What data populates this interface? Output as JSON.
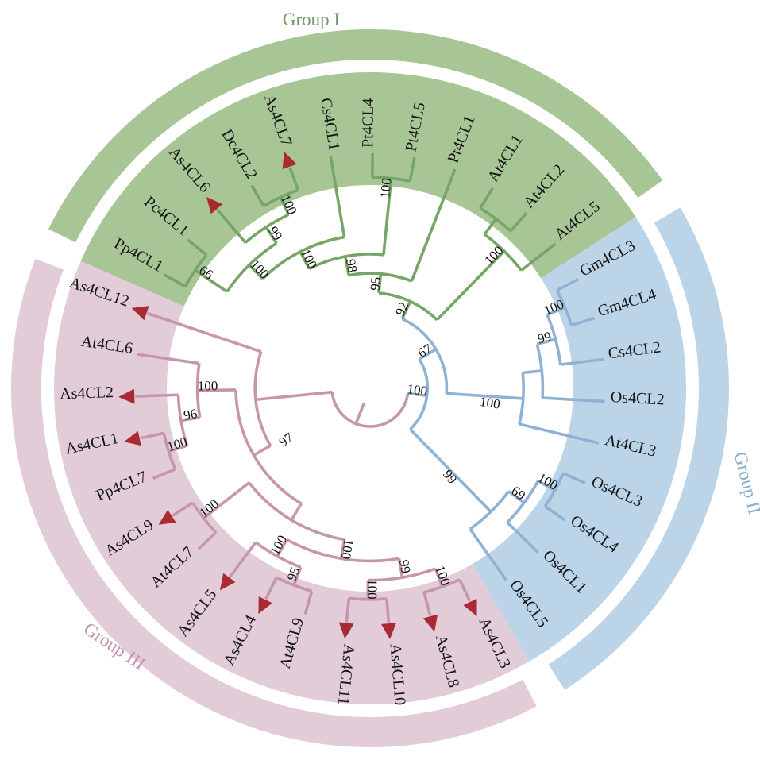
{
  "figure": {
    "type": "circular-phylogenetic-tree",
    "background": "#ffffff"
  },
  "groups": [
    {
      "id": "I",
      "label": "Group I",
      "band_color": "#a8c596",
      "line_color": "#76a667",
      "label_color": "#6d9c62"
    },
    {
      "id": "II",
      "label": "Group II",
      "band_color": "#bcd4e8",
      "line_color": "#8fb2d4",
      "label_color": "#87abc8"
    },
    {
      "id": "III",
      "label": "Group III",
      "band_color": "#e2ccd8",
      "line_color": "#c795ad",
      "label_color": "#c293ab"
    }
  ],
  "marker": {
    "shape": "triangle",
    "color": "#aa2a31",
    "applies_to_prefix": "As4CL"
  },
  "tree": {
    "id": "root",
    "support": "",
    "group": "III",
    "children": [
      {
        "id": "bg",
        "support": "100",
        "group": "II",
        "children": [
          {
            "id": "n67",
            "support": "67",
            "group": "II",
            "children": [
              {
                "id": "gi",
                "support": "92",
                "group": "I",
                "children": [
                  {
                    "id": "g7b",
                    "support": "95",
                    "group": "I",
                    "children": [
                      {
                        "id": "g7",
                        "support": "98",
                        "group": "I",
                        "children": [
                          {
                            "id": "g5",
                            "support": "100",
                            "group": "I",
                            "children": [
                              {
                                "id": "g4",
                                "support": "100",
                                "group": "I",
                                "children": [
                                  {
                                    "id": "g1",
                                    "support": "66",
                                    "group": "I",
                                    "children": [
                                      {
                                        "name": "Pp4CL1",
                                        "group": "I",
                                        "marker": false
                                      },
                                      {
                                        "name": "Pc4CL1",
                                        "group": "I",
                                        "marker": false
                                      }
                                    ]
                                  },
                                  {
                                    "id": "g3",
                                    "support": "99",
                                    "group": "I",
                                    "children": [
                                      {
                                        "name": "As4CL6",
                                        "group": "I",
                                        "marker": true
                                      },
                                      {
                                        "id": "g2",
                                        "support": "100",
                                        "group": "I",
                                        "children": [
                                          {
                                            "name": "Dc4CL2",
                                            "group": "I",
                                            "marker": false
                                          },
                                          {
                                            "name": "As4CL7",
                                            "group": "I",
                                            "marker": true
                                          }
                                        ]
                                      }
                                    ]
                                  }
                                ]
                              },
                              {
                                "name": "Cs4CL1",
                                "group": "I",
                                "marker": false
                              }
                            ]
                          },
                          {
                            "id": "g6",
                            "support": "100",
                            "group": "I",
                            "children": [
                              {
                                "name": "Pt4CL4",
                                "group": "I",
                                "marker": false
                              },
                              {
                                "name": "Pt4CL5",
                                "group": "I",
                                "marker": false
                              }
                            ]
                          }
                        ]
                      },
                      {
                        "name": "Pt4CL1",
                        "group": "I",
                        "marker": false
                      }
                    ]
                  },
                  {
                    "id": "g9",
                    "support": "100",
                    "group": "I",
                    "children": [
                      {
                        "id": "g8",
                        "support": "",
                        "group": "I",
                        "children": [
                          {
                            "name": "At4CL1",
                            "group": "I",
                            "marker": false
                          },
                          {
                            "name": "At4CL2",
                            "group": "I",
                            "marker": false
                          }
                        ]
                      },
                      {
                        "name": "At4CL5",
                        "group": "I",
                        "marker": false
                      }
                    ]
                  }
                ]
              },
              {
                "id": "ub",
                "support": "100",
                "group": "II",
                "children": [
                  {
                    "id": "u2",
                    "support": "",
                    "group": "II",
                    "children": [
                      {
                        "id": "u1",
                        "support": "99",
                        "group": "II",
                        "children": [
                          {
                            "id": "gmp",
                            "support": "100",
                            "group": "II",
                            "children": [
                              {
                                "name": "Gm4CL3",
                                "group": "II",
                                "marker": false
                              },
                              {
                                "name": "Gm4CL4",
                                "group": "II",
                                "marker": false
                              }
                            ]
                          },
                          {
                            "name": "Cs4CL2",
                            "group": "II",
                            "marker": false
                          }
                        ]
                      },
                      {
                        "name": "Os4CL2",
                        "group": "II",
                        "marker": false
                      }
                    ]
                  },
                  {
                    "name": "At4CL3",
                    "group": "II",
                    "marker": false
                  }
                ]
              }
            ]
          },
          {
            "id": "low",
            "support": "99",
            "group": "II",
            "children": [
              {
                "id": "n69",
                "support": "69",
                "group": "II",
                "children": [
                  {
                    "id": "osp",
                    "support": "100",
                    "group": "II",
                    "children": [
                      {
                        "name": "Os4CL3",
                        "group": "II",
                        "marker": false
                      },
                      {
                        "name": "Os4CL4",
                        "group": "II",
                        "marker": false
                      }
                    ]
                  },
                  {
                    "name": "Os4CL1",
                    "group": "II",
                    "marker": false
                  }
                ]
              },
              {
                "name": "Os4CL5",
                "group": "II",
                "marker": false
              }
            ]
          }
        ]
      },
      {
        "id": "giii",
        "support": "",
        "group": "III",
        "children": [
          {
            "id": "n97",
            "support": "97",
            "group": "III",
            "children": [
              {
                "id": "m",
                "support": "",
                "group": "III",
                "children": [
                  {
                    "id": "h",
                    "support": "100",
                    "group": "III",
                    "children": [
                      {
                        "id": "k",
                        "support": "99",
                        "group": "III",
                        "children": [
                          {
                            "id": "k1",
                            "support": "100",
                            "group": "III",
                            "children": [
                              {
                                "name": "As4CL3",
                                "group": "III",
                                "marker": true
                              },
                              {
                                "name": "As4CL8",
                                "group": "III",
                                "marker": true
                              }
                            ]
                          },
                          {
                            "id": "k2",
                            "support": "100",
                            "group": "III",
                            "children": [
                              {
                                "name": "As4CL10",
                                "group": "III",
                                "marker": true
                              },
                              {
                                "name": "As4CL11",
                                "group": "III",
                                "marker": true
                              }
                            ]
                          }
                        ]
                      },
                      {
                        "id": "b2",
                        "support": "100",
                        "group": "III",
                        "children": [
                          {
                            "id": "b1",
                            "support": "95",
                            "group": "III",
                            "children": [
                              {
                                "name": "At4CL9",
                                "group": "III",
                                "marker": false
                              },
                              {
                                "name": "As4CL4",
                                "group": "III",
                                "marker": true
                              }
                            ]
                          },
                          {
                            "name": "As4CL5",
                            "group": "III",
                            "marker": true
                          }
                        ]
                      }
                    ]
                  },
                  {
                    "id": "c1",
                    "support": "100",
                    "group": "III",
                    "children": [
                      {
                        "name": "At4CL7",
                        "group": "III",
                        "marker": false
                      },
                      {
                        "name": "As4CL9",
                        "group": "III",
                        "marker": true
                      }
                    ]
                  }
                ]
              },
              {
                "id": "p3",
                "support": "100",
                "group": "III",
                "children": [
                  {
                    "id": "p2",
                    "support": "96",
                    "group": "III",
                    "children": [
                      {
                        "id": "p1",
                        "support": "100",
                        "group": "III",
                        "children": [
                          {
                            "name": "Pp4CL7",
                            "group": "III",
                            "marker": false
                          },
                          {
                            "name": "As4CL1",
                            "group": "III",
                            "marker": true
                          }
                        ]
                      },
                      {
                        "name": "As4CL2",
                        "group": "III",
                        "marker": true
                      }
                    ]
                  },
                  {
                    "name": "At4CL6",
                    "group": "III",
                    "marker": false
                  }
                ]
              }
            ]
          },
          {
            "name": "As4CL12",
            "group": "III",
            "marker": true
          }
        ]
      }
    ]
  }
}
